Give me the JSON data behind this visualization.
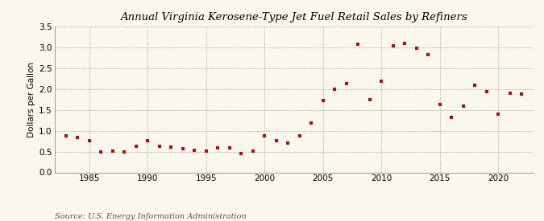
{
  "title": "Annual Virginia Kerosene-Type Jet Fuel Retail Sales by Refiners",
  "ylabel": "Dollars per Gallon",
  "source": "Source: U.S. Energy Information Administration",
  "background_color": "#FAF7EC",
  "marker_color": "#CC0000",
  "xlim": [
    1982,
    2023
  ],
  "ylim": [
    0.0,
    3.5
  ],
  "yticks": [
    0.0,
    0.5,
    1.0,
    1.5,
    2.0,
    2.5,
    3.0,
    3.5
  ],
  "xticks": [
    1985,
    1990,
    1995,
    2000,
    2005,
    2010,
    2015,
    2020
  ],
  "years": [
    1983,
    1984,
    1985,
    1986,
    1987,
    1988,
    1989,
    1990,
    1991,
    1992,
    1993,
    1994,
    1995,
    1996,
    1997,
    1998,
    1999,
    2000,
    2001,
    2002,
    2003,
    2004,
    2005,
    2006,
    2007,
    2008,
    2009,
    2010,
    2011,
    2012,
    2013,
    2014,
    2015,
    2016,
    2017,
    2018,
    2019,
    2020,
    2021,
    2022
  ],
  "values": [
    0.88,
    0.83,
    0.77,
    0.5,
    0.52,
    0.5,
    0.63,
    0.77,
    0.63,
    0.6,
    0.56,
    0.53,
    0.51,
    0.59,
    0.59,
    0.46,
    0.52,
    0.88,
    0.76,
    0.7,
    0.87,
    1.18,
    1.72,
    2.0,
    2.13,
    3.08,
    1.75,
    2.18,
    3.03,
    3.1,
    2.98,
    2.82,
    1.63,
    1.32,
    1.6,
    2.09,
    1.94,
    1.4,
    1.9,
    1.88
  ],
  "title_fontsize": 9.5,
  "ylabel_fontsize": 7.5,
  "tick_fontsize": 7.5,
  "source_fontsize": 7
}
